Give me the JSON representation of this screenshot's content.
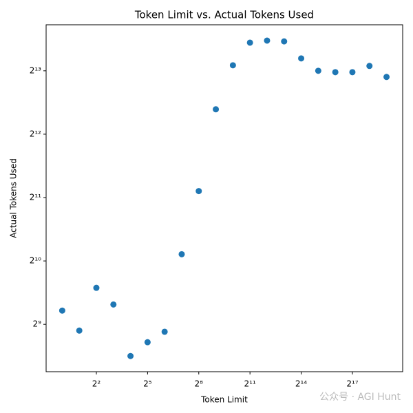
{
  "chart_data": {
    "type": "scatter",
    "title": "Token Limit vs. Actual Tokens Used",
    "x_label": "Token Limit",
    "y_label": "Actual Tokens Used",
    "x": [
      1,
      2,
      4,
      8,
      16,
      32,
      64,
      128,
      256,
      512,
      1024,
      2048,
      4096,
      8192,
      16384,
      32768,
      65536,
      131072,
      262144,
      524288
    ],
    "series": [
      {
        "color": "#1f77b4",
        "values": [
          595,
          478,
          763,
          636,
          362,
          421,
          472,
          1102,
          2199,
          5378,
          8700,
          11143,
          11400,
          11300,
          9380,
          8192,
          8070,
          8070,
          8640,
          7660
        ]
      }
    ],
    "x_scale": "log2",
    "y_scale": "log2",
    "xlim": [
      0.52,
      1010000
    ],
    "ylim": [
      305,
      13550
    ],
    "xticks": [
      {
        "value": 4,
        "label": "2²"
      },
      {
        "value": 32,
        "label": "2⁵"
      },
      {
        "value": 256,
        "label": "2⁸"
      },
      {
        "value": 2048,
        "label": "2¹¹"
      },
      {
        "value": 16384,
        "label": "2¹⁴"
      },
      {
        "value": 131072,
        "label": "2¹⁷"
      }
    ],
    "yticks": [
      {
        "value": 512,
        "label": "2⁹"
      },
      {
        "value": 1024,
        "label": "2¹⁰"
      },
      {
        "value": 2048,
        "label": "2¹¹"
      },
      {
        "value": 4096,
        "label": "2¹²"
      },
      {
        "value": 8192,
        "label": "2¹³"
      }
    ],
    "watermark": "公众号 · AGI Hunt"
  }
}
